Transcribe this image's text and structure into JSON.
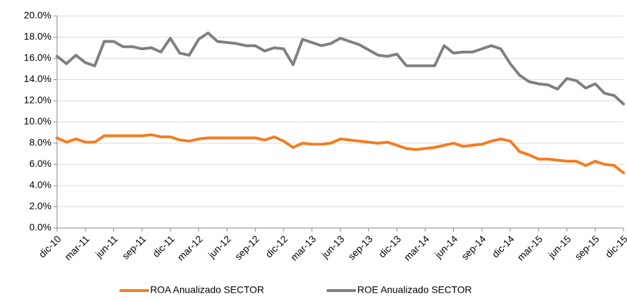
{
  "chart_data": {
    "type": "line",
    "categories": [
      "dic-10",
      null,
      null,
      "mar-11",
      null,
      null,
      "jun-11",
      null,
      null,
      "sep-11",
      null,
      null,
      "dic-11",
      null,
      null,
      "mar-12",
      null,
      null,
      "jun-12",
      null,
      null,
      "sep-12",
      null,
      null,
      "dic-12",
      null,
      null,
      "mar-13",
      null,
      null,
      "jun-13",
      null,
      null,
      "sep-13",
      null,
      null,
      "dic-13",
      null,
      null,
      "mar-14",
      null,
      null,
      "jun-14",
      null,
      null,
      "sep-14",
      null,
      null,
      "dic-14",
      null,
      null,
      "mar-15",
      null,
      null,
      "jun-15",
      null,
      null,
      "sep-15",
      null,
      null,
      "dic-15"
    ],
    "series": [
      {
        "name": "ROA Anualizado SECTOR",
        "color": "#f47c20",
        "values": [
          8.5,
          8.1,
          8.4,
          8.1,
          8.1,
          8.7,
          8.7,
          8.7,
          8.7,
          8.7,
          8.8,
          8.6,
          8.6,
          8.3,
          8.2,
          8.4,
          8.5,
          8.5,
          8.5,
          8.5,
          8.5,
          8.5,
          8.3,
          8.6,
          8.2,
          7.6,
          8.0,
          7.9,
          7.9,
          8.0,
          8.4,
          8.3,
          8.2,
          8.1,
          8.0,
          8.1,
          7.8,
          7.5,
          7.4,
          7.5,
          7.6,
          7.8,
          8.0,
          7.7,
          7.8,
          7.9,
          8.2,
          8.4,
          8.2,
          7.2,
          6.9,
          6.5,
          6.5,
          6.4,
          6.3,
          6.3,
          5.9,
          6.3,
          6.0,
          5.9,
          5.2
        ]
      },
      {
        "name": "ROE Anualizado SECTOR",
        "color": "#7f7f7f",
        "values": [
          16.2,
          15.5,
          16.3,
          15.6,
          15.3,
          17.6,
          17.6,
          17.1,
          17.1,
          16.9,
          17.0,
          16.6,
          17.9,
          16.5,
          16.3,
          17.8,
          18.4,
          17.6,
          17.5,
          17.4,
          17.2,
          17.2,
          16.7,
          17.0,
          16.9,
          15.4,
          17.8,
          17.5,
          17.2,
          17.4,
          17.9,
          17.6,
          17.3,
          16.8,
          16.3,
          16.2,
          16.4,
          15.3,
          15.3,
          15.3,
          15.3,
          17.2,
          16.5,
          16.6,
          16.6,
          16.9,
          17.2,
          16.9,
          15.5,
          14.4,
          13.8,
          13.6,
          13.5,
          13.1,
          14.1,
          13.9,
          13.2,
          13.6,
          12.7,
          12.5,
          11.7
        ]
      }
    ],
    "ylim": [
      0,
      20
    ],
    "yticks": [
      {
        "value": 0,
        "label": "0.0%"
      },
      {
        "value": 2,
        "label": "2.0%"
      },
      {
        "value": 4,
        "label": "4.0%"
      },
      {
        "value": 6,
        "label": "6.0%"
      },
      {
        "value": 8,
        "label": "8.0%"
      },
      {
        "value": 10,
        "label": "10.0%"
      },
      {
        "value": 12,
        "label": "12.0%"
      },
      {
        "value": 14,
        "label": "14.0%"
      },
      {
        "value": 16,
        "label": "16.0%"
      },
      {
        "value": 18,
        "label": "18.0%"
      },
      {
        "value": 20,
        "label": "20.0%"
      }
    ],
    "grid": true,
    "legend": "bottom"
  }
}
